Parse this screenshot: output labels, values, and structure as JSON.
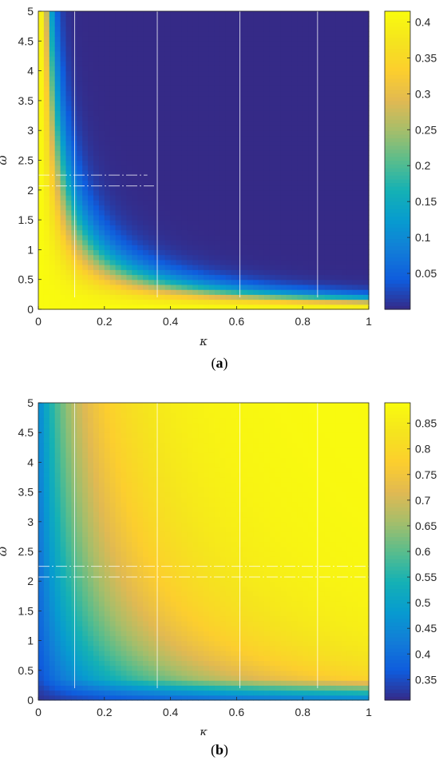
{
  "chart_data": [
    {
      "type": "heatmap",
      "caption_letter": "a",
      "xlabel": "κ",
      "ylabel": "ω",
      "xlim": [
        0,
        1
      ],
      "ylim": [
        0,
        5
      ],
      "xticks": [
        "0",
        "0.2",
        "0.4",
        "0.6",
        "0.8",
        "1"
      ],
      "yticks": [
        "0",
        "0.5",
        "1",
        "1.5",
        "2",
        "2.5",
        "3",
        "3.5",
        "4",
        "4.5",
        "5"
      ],
      "colorbar": {
        "range": [
          0,
          0.415
        ],
        "ticks": [
          "0.05",
          "0.1",
          "0.15",
          "0.2",
          "0.25",
          "0.3",
          "0.35",
          "0.4"
        ],
        "tick_values": [
          0.05,
          0.1,
          0.15,
          0.2,
          0.25,
          0.3,
          0.35,
          0.4
        ]
      },
      "colormap": "parula",
      "description_values": {
        "low_region": "upper right (high κ, high ω) ≈ 0",
        "high_region": "small κ or small ω ≈ 0.41"
      }
    },
    {
      "type": "heatmap",
      "caption_letter": "b",
      "xlabel": "κ",
      "ylabel": "ω",
      "xlim": [
        0,
        1
      ],
      "ylim": [
        0,
        5
      ],
      "xticks": [
        "0",
        "0.2",
        "0.4",
        "0.6",
        "0.8",
        "1"
      ],
      "yticks": [
        "0",
        "0.5",
        "1",
        "1.5",
        "2",
        "2.5",
        "3",
        "3.5",
        "4",
        "4.5",
        "5"
      ],
      "colorbar": {
        "range": [
          0.31,
          0.89
        ],
        "ticks": [
          "0.35",
          "0.4",
          "0.45",
          "0.5",
          "0.55",
          "0.6",
          "0.65",
          "0.7",
          "0.75",
          "0.8",
          "0.85"
        ],
        "tick_values": [
          0.35,
          0.4,
          0.45,
          0.5,
          0.55,
          0.6,
          0.65,
          0.7,
          0.75,
          0.8,
          0.85
        ]
      },
      "colormap": "parula"
    }
  ],
  "captions": {
    "a": "a",
    "b": "b"
  }
}
